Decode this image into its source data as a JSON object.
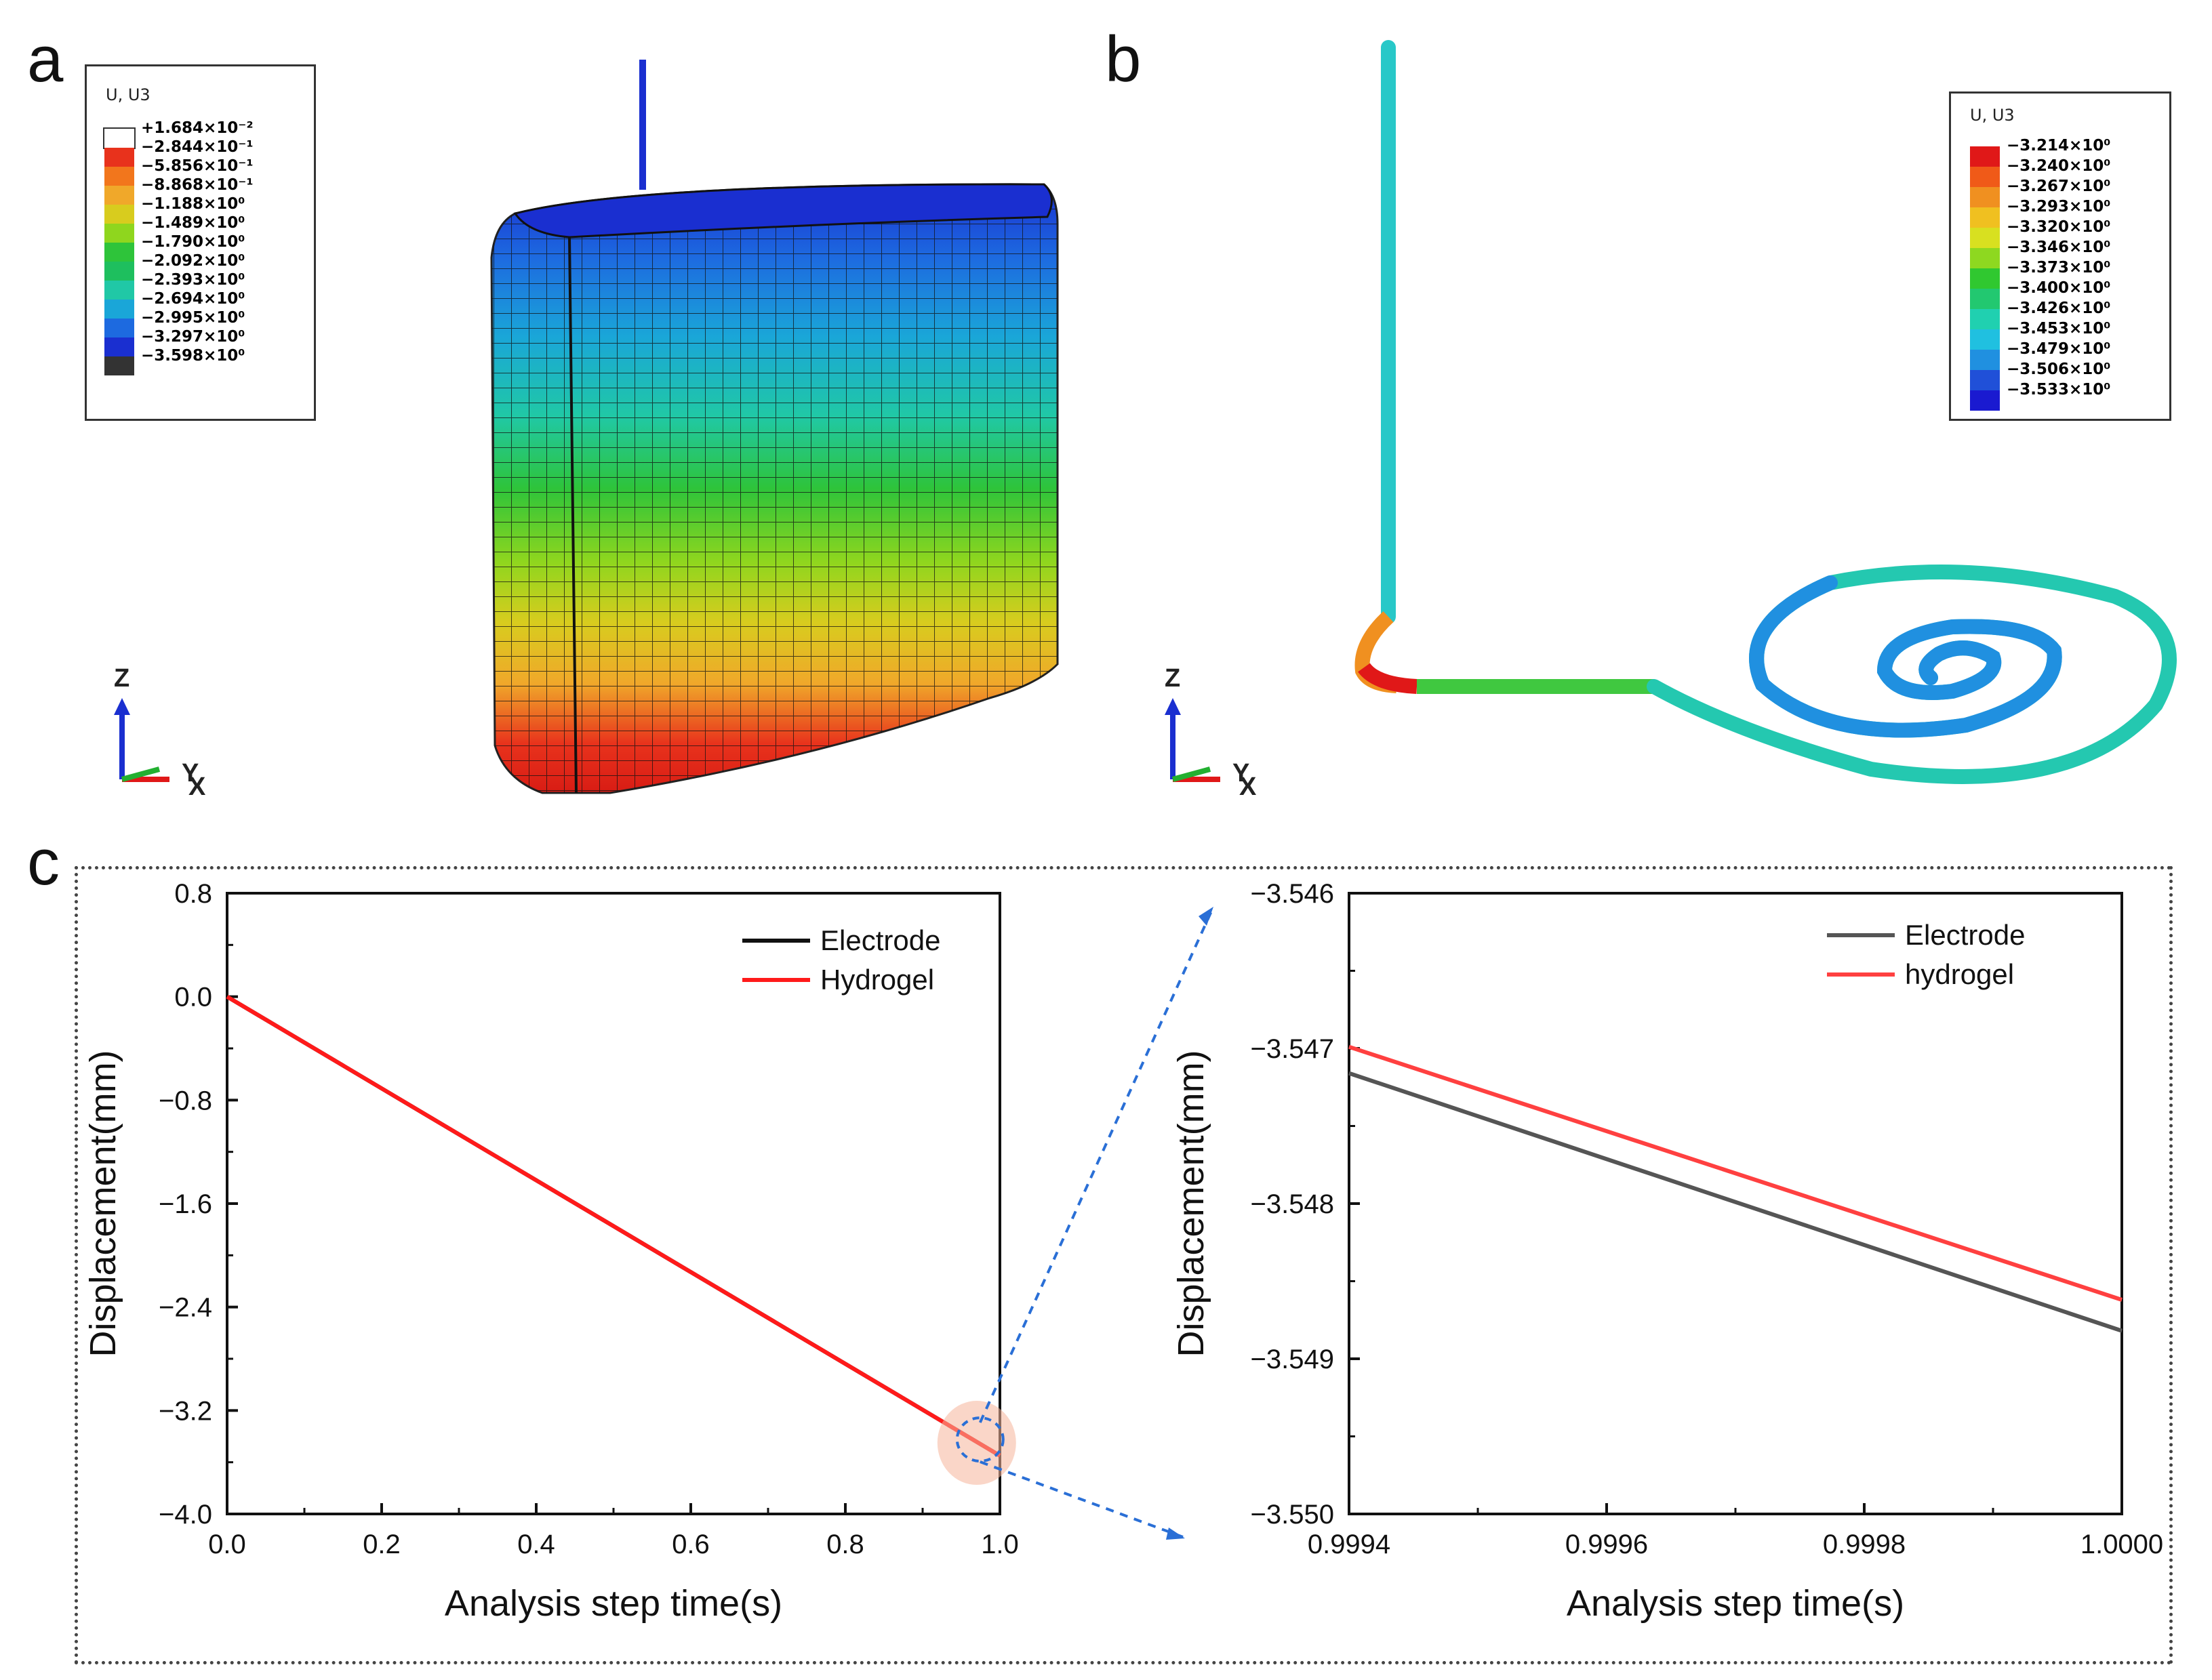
{
  "panels": {
    "a": {
      "letter": "a",
      "legend_title": "U, U3",
      "legend_values": [
        "+1.684×10⁻²",
        "−2.844×10⁻¹",
        "−5.856×10⁻¹",
        "−8.868×10⁻¹",
        "−1.188×10⁰",
        "−1.489×10⁰",
        "−1.790×10⁰",
        "−2.092×10⁰",
        "−2.393×10⁰",
        "−2.694×10⁰",
        "−2.995×10⁰",
        "−3.297×10⁰",
        "−3.598×10⁰"
      ],
      "legend_colors": [
        "#ffffff",
        "#e8321c",
        "#f2761c",
        "#f0a82a",
        "#d8cc1e",
        "#8fd61e",
        "#2ec43a",
        "#1ebf5e",
        "#20c8a6",
        "#1aa6d8",
        "#1d6ae0",
        "#1a2fd0",
        "#333333"
      ],
      "triad": {
        "z": "Z",
        "y": "Y",
        "x": "X"
      }
    },
    "b": {
      "letter": "b",
      "legend_title": "U, U3",
      "legend_values": [
        "−3.214×10⁰",
        "−3.240×10⁰",
        "−3.267×10⁰",
        "−3.293×10⁰",
        "−3.320×10⁰",
        "−3.346×10⁰",
        "−3.373×10⁰",
        "−3.400×10⁰",
        "−3.426×10⁰",
        "−3.453×10⁰",
        "−3.479×10⁰",
        "−3.506×10⁰",
        "−3.533×10⁰"
      ],
      "legend_colors": [
        "#e01818",
        "#f05a18",
        "#f09020",
        "#f0c020",
        "#d8e020",
        "#8ed820",
        "#30c830",
        "#22c870",
        "#20d0b0",
        "#20c0e0",
        "#2090e0",
        "#2050d8",
        "#1a1ad0"
      ],
      "triad": {
        "z": "Z",
        "y": "Y",
        "x": "X"
      }
    },
    "c": {
      "letter": "c"
    }
  },
  "colors": {
    "electrode": "#111111",
    "hydrogel": "#ff1a1a",
    "electrode_zoom": "#555555",
    "hydrogel_zoom": "#ff4040",
    "zoom_arrow": "#2a6fd6"
  },
  "chart_data": [
    {
      "type": "line",
      "xlabel": "Analysis step time(s)",
      "ylabel": "Displacement(mm)",
      "xlim": [
        0.0,
        1.0
      ],
      "ylim": [
        -4.0,
        0.8
      ],
      "xticks": [
        "0.0",
        "0.2",
        "0.4",
        "0.6",
        "0.8",
        "1.0"
      ],
      "yticks": [
        "0.8",
        "0.0",
        "-0.8",
        "-1.6",
        "-2.4",
        "-3.2",
        "-4.0"
      ],
      "legend_position": "top-right",
      "series": [
        {
          "name": "Electrode",
          "x": [
            0.0,
            1.0
          ],
          "y": [
            0.0,
            -3.549
          ]
        },
        {
          "name": "Hydrogel",
          "x": [
            0.0,
            1.0
          ],
          "y": [
            0.0,
            -3.549
          ]
        }
      ]
    },
    {
      "type": "line",
      "xlabel": "Analysis step time(s)",
      "ylabel": "Displacement(mm)",
      "xlim": [
        0.9994,
        1.0
      ],
      "ylim": [
        -3.55,
        -3.546
      ],
      "xticks": [
        "0.9994",
        "0.9996",
        "0.9998",
        "1.0000"
      ],
      "yticks": [
        "-3.546",
        "-3.547",
        "-3.548",
        "-3.549",
        "-3.550"
      ],
      "legend_position": "top-right",
      "series": [
        {
          "name": "Electrode",
          "x": [
            0.9994,
            1.0
          ],
          "y": [
            -3.54716,
            -3.54882
          ]
        },
        {
          "name": "hydrogel",
          "x": [
            0.9994,
            1.0
          ],
          "y": [
            -3.54699,
            -3.54862
          ]
        }
      ]
    }
  ]
}
